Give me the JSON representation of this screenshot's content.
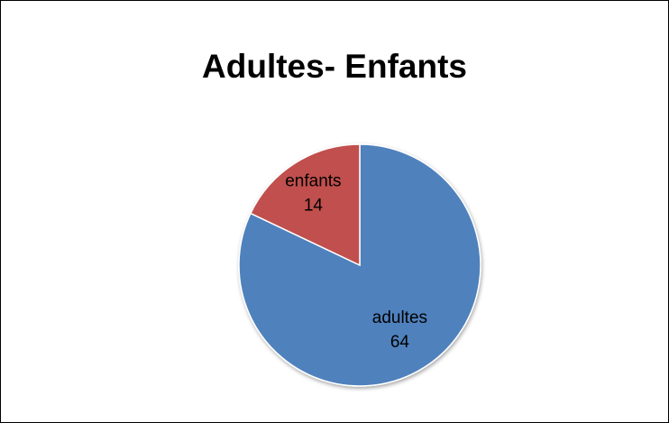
{
  "chart_data": {
    "type": "pie",
    "title": "Adultes- Enfants",
    "slices": [
      {
        "name": "adultes",
        "value": 64,
        "color": "#4F81BD",
        "label_value": "64"
      },
      {
        "name": "enfants",
        "value": 14,
        "color": "#C0504D",
        "label_value": "14"
      }
    ],
    "legend": "none",
    "data_labels": "category-and-value-inside"
  }
}
